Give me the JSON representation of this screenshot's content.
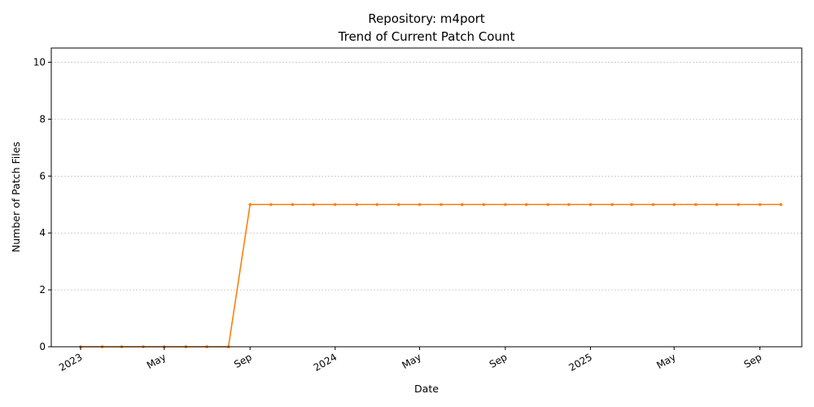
{
  "chart_data": {
    "type": "line",
    "title": "Repository: m4port",
    "subtitle": "Trend of Current Patch Count",
    "xlabel": "Date",
    "ylabel": "Number of Patch Files",
    "ylim": [
      0,
      10.5
    ],
    "xlim": [
      "2022-11-20",
      "2025-10-31"
    ],
    "y_ticks": [
      0,
      2,
      4,
      6,
      8,
      10
    ],
    "x_ticks": [
      {
        "date": "2023-01-01",
        "label": "2023"
      },
      {
        "date": "2023-05-01",
        "label": "May"
      },
      {
        "date": "2023-09-01",
        "label": "Sep"
      },
      {
        "date": "2024-01-01",
        "label": "2024"
      },
      {
        "date": "2024-05-01",
        "label": "May"
      },
      {
        "date": "2024-09-01",
        "label": "Sep"
      },
      {
        "date": "2025-01-01",
        "label": "2025"
      },
      {
        "date": "2025-05-01",
        "label": "May"
      },
      {
        "date": "2025-09-01",
        "label": "Sep"
      }
    ],
    "grid": "y",
    "color": "#ff7f0e",
    "series": [
      {
        "x": [
          "2023-01-01",
          "2023-02-01",
          "2023-03-01",
          "2023-04-01",
          "2023-05-01",
          "2023-06-01",
          "2023-07-01",
          "2023-08-01",
          "2023-09-01",
          "2023-10-01",
          "2023-11-01",
          "2023-12-01",
          "2024-01-01",
          "2024-02-01",
          "2024-03-01",
          "2024-04-01",
          "2024-05-01",
          "2024-06-01",
          "2024-07-01",
          "2024-08-01",
          "2024-09-01",
          "2024-10-01",
          "2024-11-01",
          "2024-12-01",
          "2025-01-01",
          "2025-02-01",
          "2025-03-01",
          "2025-04-01",
          "2025-05-01",
          "2025-06-01",
          "2025-07-01",
          "2025-08-01",
          "2025-09-01",
          "2025-10-01"
        ],
        "values": [
          0,
          0,
          0,
          0,
          0,
          0,
          0,
          0,
          5,
          5,
          5,
          5,
          5,
          5,
          5,
          5,
          5,
          5,
          5,
          5,
          5,
          5,
          5,
          5,
          5,
          5,
          5,
          5,
          5,
          5,
          5,
          5,
          5,
          5
        ]
      }
    ]
  }
}
